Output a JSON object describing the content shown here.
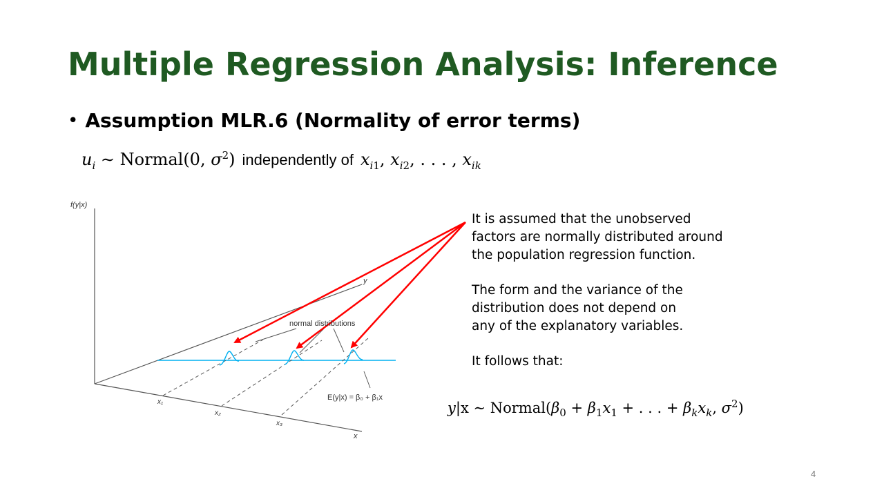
{
  "slide": {
    "title": "Multiple Regression Analysis: Inference",
    "bullet": "Assumption MLR.6 (Normality of error terms)",
    "formula1": {
      "text": "independently of"
    },
    "figure": {
      "y_axis_label": "f(y|x)",
      "y_label": "y",
      "x_label": "x",
      "normal_label": "normal distributions",
      "regression_label": "E(y|x) = β₀ + β₁x",
      "x1": "x₁",
      "x2": "x₂",
      "x3": "x₃"
    },
    "explanation": {
      "p1_l1": "It is assumed that the unobserved",
      "p1_l2": "factors are normally distributed around",
      "p1_l3": "the population regression function.",
      "p2_l1": "The form and the variance of the",
      "p2_l2": "distribution does not depend on",
      "p2_l3": "any of the explanatory variables.",
      "p3": "It follows that:"
    },
    "page_number": "4"
  },
  "colors": {
    "title": "#1f5a22",
    "arrows": "#ff0000",
    "regression_line": "#00b0f0"
  }
}
